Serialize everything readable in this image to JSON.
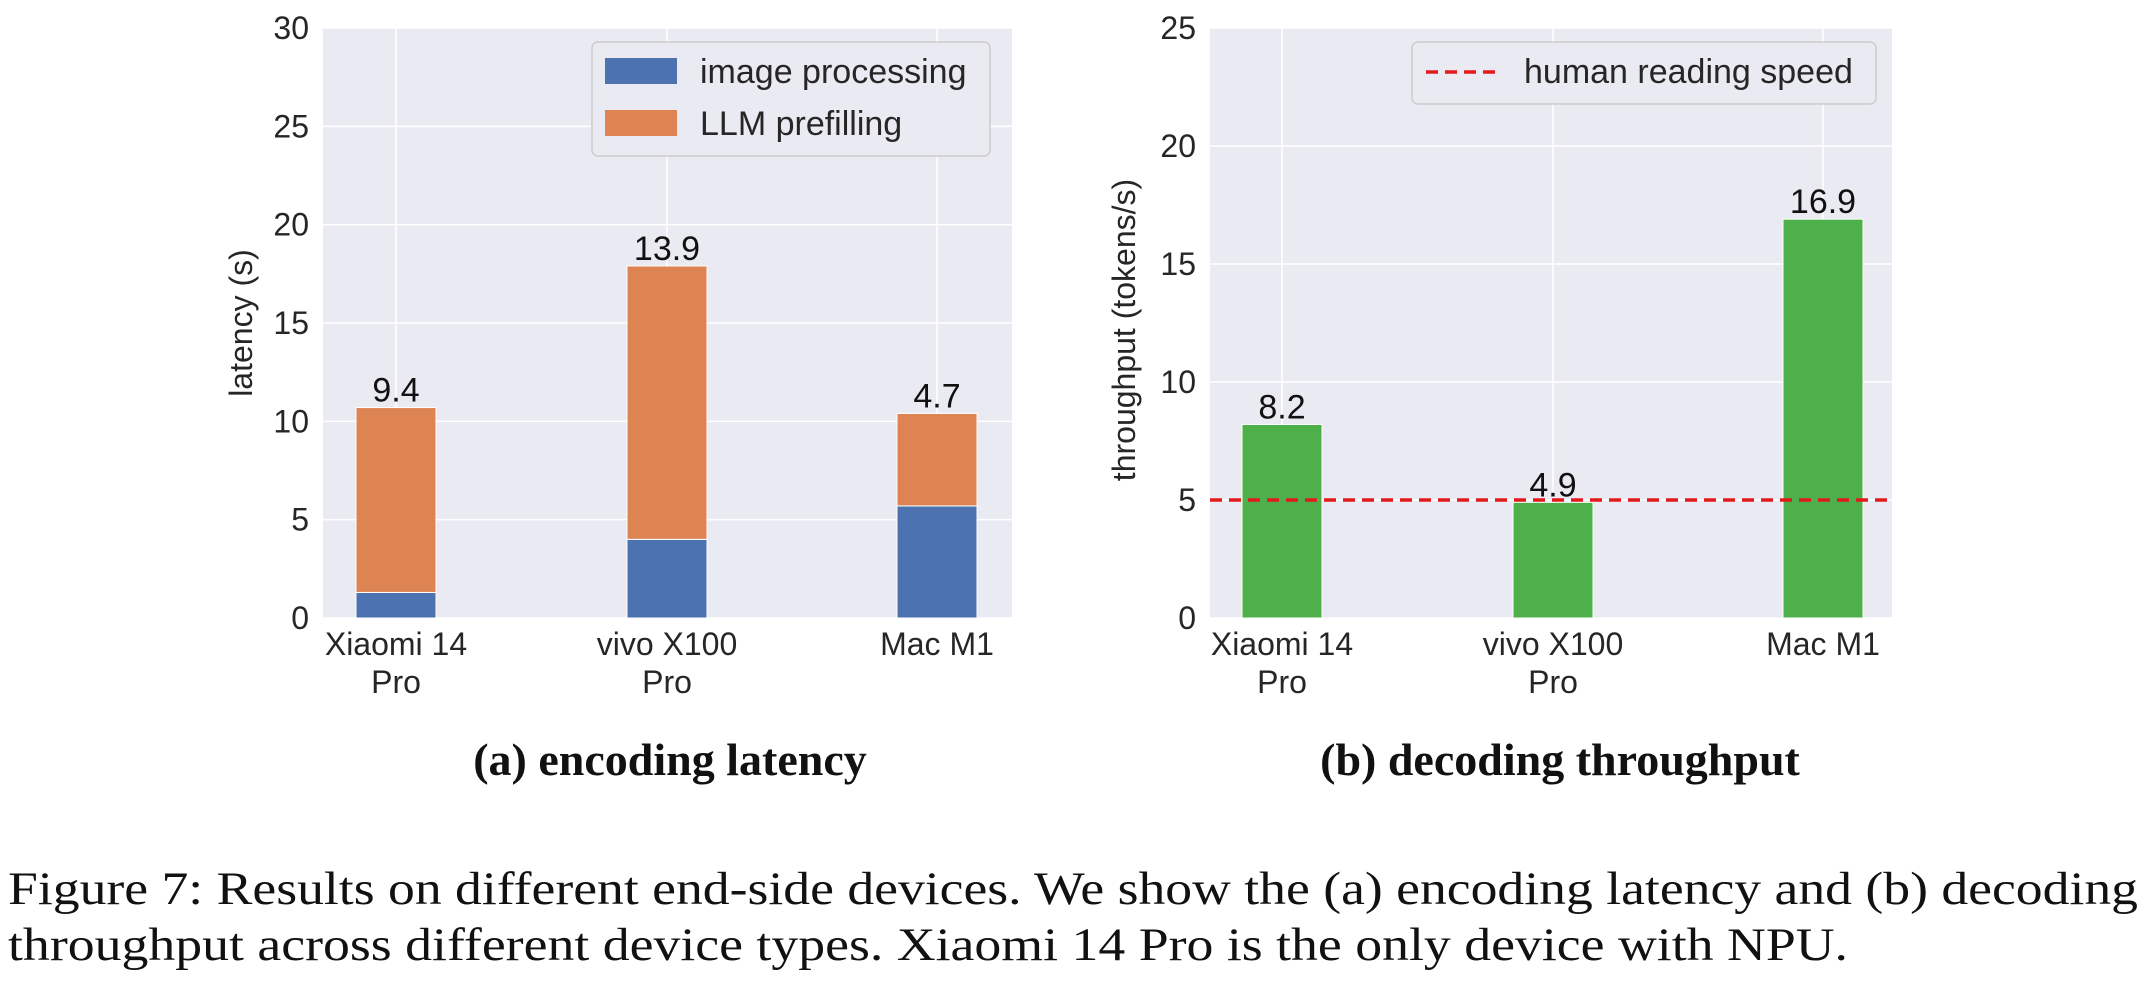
{
  "chart_data": [
    {
      "type": "bar",
      "stacked": true,
      "subtitle": "(a) encoding latency",
      "xlabel": "",
      "ylabel": "latency (s)",
      "ylim": [
        0,
        30
      ],
      "yticks": [
        0,
        5,
        10,
        15,
        20,
        25,
        30
      ],
      "categories": [
        [
          "Xiaomi 14",
          "Pro"
        ],
        [
          "vivo X100",
          "Pro"
        ],
        [
          "Mac M1"
        ]
      ],
      "series": [
        {
          "name": "image processing",
          "color": "#4c72b0",
          "values": [
            1.3,
            4.0,
            5.7
          ],
          "labels": [
            "1.3",
            "4.0",
            "5.7"
          ]
        },
        {
          "name": "LLM prefilling",
          "color": "#dd8452",
          "values": [
            9.4,
            13.9,
            4.7
          ],
          "labels": [
            "9.4",
            "13.9",
            "4.7"
          ]
        }
      ],
      "grid": true,
      "legend": "top-right"
    },
    {
      "type": "bar",
      "subtitle": "(b) decoding throughput",
      "xlabel": "",
      "ylabel": "throughput (tokens/s)",
      "ylim": [
        0,
        25
      ],
      "yticks": [
        0,
        5,
        10,
        15,
        20,
        25
      ],
      "categories": [
        [
          "Xiaomi 14",
          "Pro"
        ],
        [
          "vivo X100",
          "Pro"
        ],
        [
          "Mac M1"
        ]
      ],
      "series": [
        {
          "color": "#4db04a",
          "values": [
            8.2,
            4.9,
            16.9
          ],
          "labels": [
            "8.2",
            "4.9",
            "16.9"
          ]
        }
      ],
      "reference_line": {
        "name": "human reading speed",
        "y": 5,
        "color": "#e31a1c",
        "style": "dashed"
      },
      "grid": true,
      "legend": "top-right"
    }
  ],
  "caption": {
    "line1": "Figure 7: Results on different end-side devices. We show the (a) encoding latency and (b) decoding",
    "line2": "throughput across different device types. Xiaomi 14 Pro is the only device with NPU."
  },
  "colors": {
    "panel_bg": "#eaeaf2",
    "grid": "#ffffff",
    "text": "#262626"
  }
}
